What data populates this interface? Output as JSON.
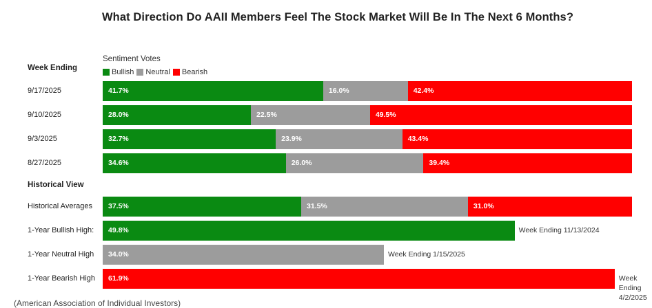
{
  "title": "What Direction Do AAII Members Feel The Stock Market Will Be In The Next 6 Months?",
  "source": "(American Association of Individual Investors)",
  "chart_data": {
    "type": "bar",
    "orientation": "horizontal-stacked",
    "title": "What Direction Do AAII Members Feel The Stock Market Will Be In The Next 6 Months?",
    "legend_title": "Sentiment Votes",
    "legend": [
      "Bullish",
      "Neutral",
      "Bearish"
    ],
    "colors": {
      "Bullish": "#0a8a12",
      "Neutral": "#9c9c9c",
      "Bearish": "#ff0000"
    },
    "scale_max_percent": 64.0,
    "sections": [
      {
        "label": "Week Ending",
        "rows": [
          {
            "label": "9/17/2025",
            "Bullish": 41.7,
            "Neutral": 16.0,
            "Bearish": 42.4,
            "labels": [
              "41.7%",
              "16.0%",
              "42.4%"
            ]
          },
          {
            "label": "9/10/2025",
            "Bullish": 28.0,
            "Neutral": 22.5,
            "Bearish": 49.5,
            "labels": [
              "28.0%",
              "22.5%",
              "49.5%"
            ]
          },
          {
            "label": "9/3/2025",
            "Bullish": 32.7,
            "Neutral": 23.9,
            "Bearish": 43.4,
            "labels": [
              "32.7%",
              "23.9%",
              "43.4%"
            ]
          },
          {
            "label": "8/27/2025",
            "Bullish": 34.6,
            "Neutral": 26.0,
            "Bearish": 39.4,
            "labels": [
              "34.6%",
              "26.0%",
              "39.4%"
            ]
          }
        ]
      },
      {
        "label": "Historical View",
        "rows": [
          {
            "label": "Historical Averages",
            "Bullish": 37.5,
            "Neutral": 31.5,
            "Bearish": 31.0,
            "labels": [
              "37.5%",
              "31.5%",
              "31.0%"
            ]
          },
          {
            "label": "1-Year Bullish High:",
            "Bullish": 49.8,
            "labels": [
              "49.8%"
            ],
            "note": "Week Ending 11/13/2024"
          },
          {
            "label": "1-Year Neutral High",
            "Neutral": 34.0,
            "labels": [
              "34.0%"
            ],
            "note": "Week Ending 1/15/2025"
          },
          {
            "label": "1-Year Bearish High",
            "Bearish": 61.9,
            "labels": [
              "61.9%"
            ],
            "note": "Week Ending 4/2/2025"
          }
        ]
      }
    ]
  }
}
